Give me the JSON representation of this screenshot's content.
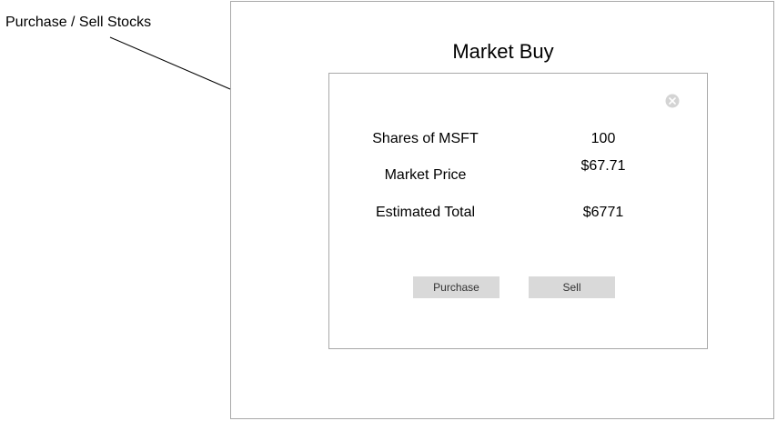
{
  "annotation": {
    "label": "Purchase / Sell Stocks"
  },
  "screen": {
    "title": "Market Buy"
  },
  "dialog": {
    "close_icon": "close-circle-icon",
    "rows": [
      {
        "label": "Shares of MSFT",
        "value": "100"
      },
      {
        "label": "Market Price",
        "value": "$67.71"
      },
      {
        "label": "Estimated Total",
        "value": "$6771"
      }
    ],
    "buttons": {
      "purchase_label": "Purchase",
      "sell_label": "Sell"
    }
  },
  "colors": {
    "frame_border": "#a8a8a8",
    "button_fill": "#d9d9d9",
    "close_icon": "#d4d4d4"
  }
}
